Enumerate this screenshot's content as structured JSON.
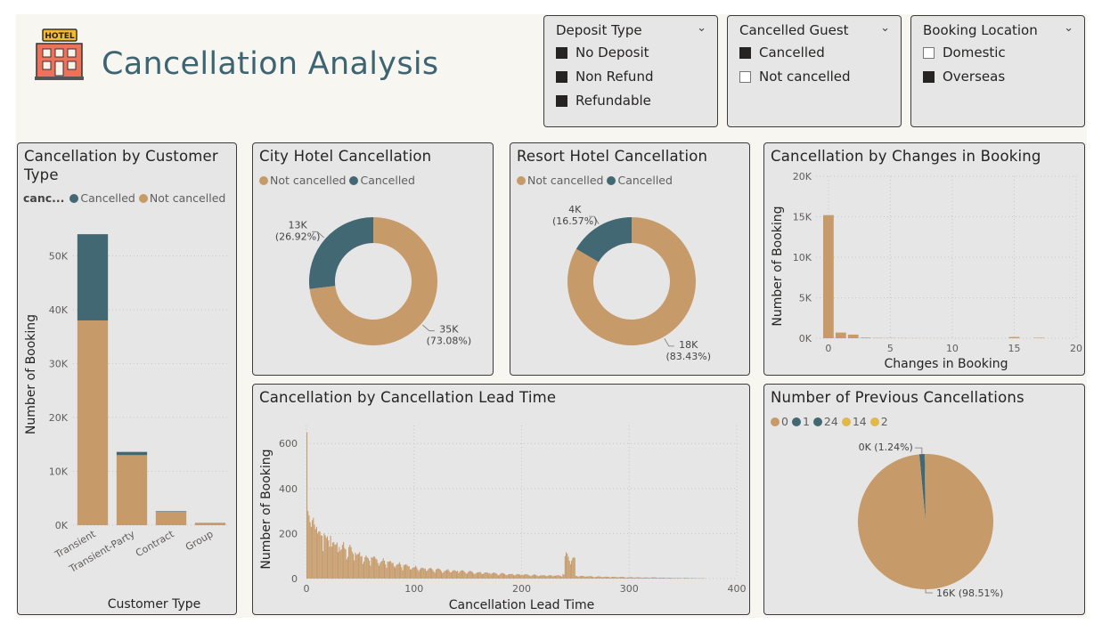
{
  "header": {
    "title": "Cancellation Analysis",
    "icon": "hotel-icon",
    "icon_text": "HOTEL"
  },
  "colors": {
    "not_cancelled": "#c69b69",
    "cancelled": "#426873",
    "accent_yellow": "#e1b84a"
  },
  "slicers": [
    {
      "title": "Deposit Type",
      "items": [
        {
          "label": "No Deposit",
          "checked": true
        },
        {
          "label": "Non Refund",
          "checked": true
        },
        {
          "label": "Refundable",
          "checked": true
        }
      ]
    },
    {
      "title": "Cancelled Guest",
      "items": [
        {
          "label": "Cancelled",
          "checked": true
        },
        {
          "label": "Not cancelled",
          "checked": false
        }
      ]
    },
    {
      "title": "Booking Location",
      "items": [
        {
          "label": "Domestic",
          "checked": false
        },
        {
          "label": "Overseas",
          "checked": true
        }
      ]
    }
  ],
  "chart_data": [
    {
      "id": "customer_type",
      "type": "bar",
      "stacked": true,
      "title": "Cancellation by Customer Type",
      "legend_title": "canc...",
      "legend": [
        "Cancelled",
        "Not cancelled"
      ],
      "categories": [
        "Transient",
        "Transient-Party",
        "Contract",
        "Group"
      ],
      "series": [
        {
          "name": "Not cancelled",
          "values": [
            38000,
            13000,
            2500,
            400
          ]
        },
        {
          "name": "Cancelled",
          "values": [
            16000,
            600,
            100,
            30
          ]
        }
      ],
      "xlabel": "Customer Type",
      "ylabel": "Number of Booking",
      "ylim": [
        0,
        56000
      ],
      "yticks": [
        0,
        10000,
        20000,
        30000,
        40000,
        50000
      ],
      "ytick_labels": [
        "0K",
        "10K",
        "20K",
        "30K",
        "40K",
        "50K"
      ],
      "grid": true
    },
    {
      "id": "city_hotel",
      "type": "pie",
      "donut": true,
      "title": "City Hotel Cancellation",
      "legend": [
        "Not cancelled",
        "Cancelled"
      ],
      "slices": [
        {
          "name": "Not cancelled",
          "value": 35000,
          "percent": 73.08,
          "label": "35K",
          "pct_label": "(73.08%)"
        },
        {
          "name": "Cancelled",
          "value": 13000,
          "percent": 26.92,
          "label": "13K",
          "pct_label": "(26.92%)"
        }
      ]
    },
    {
      "id": "resort_hotel",
      "type": "pie",
      "donut": true,
      "title": "Resort Hotel Cancellation",
      "legend": [
        "Not cancelled",
        "Cancelled"
      ],
      "slices": [
        {
          "name": "Not cancelled",
          "value": 18000,
          "percent": 83.43,
          "label": "18K",
          "pct_label": "(83.43%)"
        },
        {
          "name": "Cancelled",
          "value": 4000,
          "percent": 16.57,
          "label": "4K",
          "pct_label": "(16.57%)"
        }
      ]
    },
    {
      "id": "booking_changes",
      "type": "bar",
      "title": "Cancellation by Changes in Booking",
      "x": [
        0,
        1,
        2,
        3,
        4,
        5,
        6,
        7,
        8,
        9,
        10,
        11,
        13,
        14,
        15,
        16,
        17,
        18
      ],
      "values": [
        15200,
        700,
        450,
        80,
        40,
        30,
        20,
        15,
        10,
        8,
        6,
        4,
        3,
        2,
        150,
        2,
        60,
        2
      ],
      "xlabel": "Changes in Booking",
      "ylabel": "Number of Booking",
      "xlim": [
        -1,
        20
      ],
      "ylim": [
        0,
        20000
      ],
      "xticks": [
        0,
        5,
        10,
        15,
        20
      ],
      "yticks": [
        0,
        5000,
        10000,
        15000,
        20000
      ],
      "ytick_labels": [
        "0K",
        "5K",
        "10K",
        "15K",
        "20K"
      ],
      "grid": true
    },
    {
      "id": "lead_time",
      "type": "bar",
      "title": "Cancellation by Cancellation Lead Time",
      "xlabel": "Cancellation Lead Time",
      "ylabel": "Number of Booking",
      "xlim": [
        0,
        400
      ],
      "ylim": [
        0,
        680
      ],
      "xticks": [
        0,
        100,
        200,
        300,
        400
      ],
      "yticks": [
        0,
        200,
        400,
        600
      ],
      "x": [
        0,
        1,
        2,
        3,
        4,
        5,
        6,
        7,
        8,
        9,
        10,
        12,
        14,
        16,
        18,
        20,
        22,
        24,
        26,
        28,
        30,
        33,
        36,
        39,
        42,
        45,
        48,
        51,
        54,
        57,
        60,
        65,
        70,
        75,
        80,
        85,
        90,
        95,
        100,
        110,
        120,
        130,
        140,
        150,
        160,
        170,
        180,
        190,
        200,
        210,
        220,
        230,
        238,
        240,
        250,
        260,
        270,
        280,
        290,
        300,
        310,
        320,
        330,
        340,
        350,
        360,
        370
      ],
      "values": [
        650,
        300,
        280,
        250,
        230,
        260,
        270,
        240,
        220,
        230,
        200,
        210,
        190,
        200,
        180,
        170,
        190,
        160,
        150,
        160,
        140,
        150,
        130,
        140,
        120,
        115,
        110,
        100,
        95,
        90,
        95,
        85,
        80,
        75,
        70,
        65,
        60,
        55,
        50,
        45,
        40,
        38,
        35,
        30,
        28,
        25,
        22,
        20,
        18,
        16,
        15,
        14,
        20,
        100,
        12,
        10,
        9,
        8,
        7,
        6,
        5,
        5,
        4,
        3,
        3,
        2,
        1
      ]
    },
    {
      "id": "previous_cancellations",
      "type": "pie",
      "title": "Number of Previous Cancellations",
      "legend": [
        "0",
        "1",
        "24",
        "14",
        "2"
      ],
      "legend_colors": [
        "#c69b69",
        "#426873",
        "#426873",
        "#e1b84a",
        "#e1b84a"
      ],
      "slices": [
        {
          "name": "0",
          "value": 16000,
          "percent": 98.51,
          "label": "16K (98.51%)"
        },
        {
          "name": "1",
          "value": 200,
          "percent": 1.24,
          "label": "0K (1.24%)"
        },
        {
          "name": "24",
          "value": 20,
          "percent": 0.12
        },
        {
          "name": "14",
          "value": 10,
          "percent": 0.07
        },
        {
          "name": "2",
          "value": 10,
          "percent": 0.06
        }
      ]
    }
  ]
}
